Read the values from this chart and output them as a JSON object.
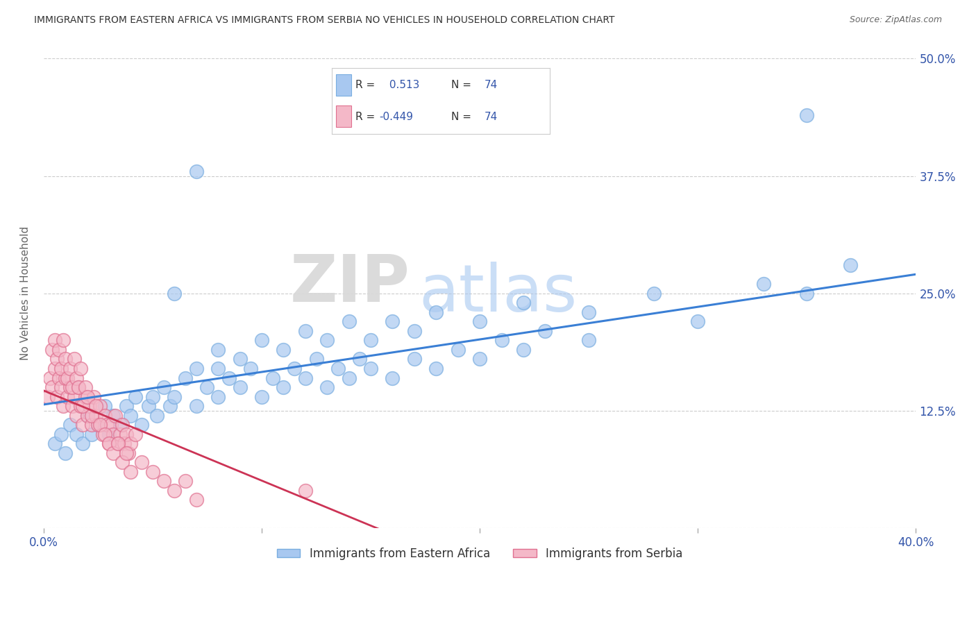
{
  "title": "IMMIGRANTS FROM EASTERN AFRICA VS IMMIGRANTS FROM SERBIA NO VEHICLES IN HOUSEHOLD CORRELATION CHART",
  "source": "Source: ZipAtlas.com",
  "ylabel": "No Vehicles in Household",
  "x_min": 0.0,
  "x_max": 0.4,
  "y_min": 0.0,
  "y_max": 0.5,
  "R_blue": 0.513,
  "R_pink": -0.449,
  "N_blue": 74,
  "N_pink": 74,
  "blue_color": "#a8c8f0",
  "blue_edge_color": "#7aaee0",
  "pink_color": "#f4b8c8",
  "pink_edge_color": "#e07090",
  "blue_line_color": "#3a7fd5",
  "pink_line_color": "#cc3355",
  "legend_label_blue": "Immigrants from Eastern Africa",
  "legend_label_pink": "Immigrants from Serbia",
  "watermark_zip": "ZIP",
  "watermark_atlas": "atlas",
  "background_color": "#ffffff",
  "grid_color": "#cccccc",
  "title_color": "#333333",
  "axis_label_color": "#666666",
  "tick_color": "#3355aa",
  "seed": 42,
  "blue_scatter_x": [
    0.005,
    0.008,
    0.01,
    0.012,
    0.015,
    0.018,
    0.02,
    0.022,
    0.025,
    0.028,
    0.03,
    0.032,
    0.035,
    0.038,
    0.04,
    0.042,
    0.045,
    0.048,
    0.05,
    0.052,
    0.055,
    0.058,
    0.06,
    0.065,
    0.07,
    0.075,
    0.08,
    0.085,
    0.09,
    0.095,
    0.1,
    0.105,
    0.11,
    0.115,
    0.12,
    0.125,
    0.13,
    0.135,
    0.14,
    0.145,
    0.15,
    0.16,
    0.17,
    0.18,
    0.19,
    0.2,
    0.21,
    0.22,
    0.23,
    0.25,
    0.07,
    0.08,
    0.09,
    0.1,
    0.11,
    0.12,
    0.13,
    0.14,
    0.15,
    0.16,
    0.17,
    0.18,
    0.2,
    0.22,
    0.25,
    0.28,
    0.3,
    0.33,
    0.35,
    0.37,
    0.06,
    0.07,
    0.08,
    0.35
  ],
  "blue_scatter_y": [
    0.09,
    0.1,
    0.08,
    0.11,
    0.1,
    0.09,
    0.12,
    0.1,
    0.11,
    0.13,
    0.1,
    0.12,
    0.11,
    0.13,
    0.12,
    0.14,
    0.11,
    0.13,
    0.14,
    0.12,
    0.15,
    0.13,
    0.14,
    0.16,
    0.13,
    0.15,
    0.14,
    0.16,
    0.15,
    0.17,
    0.14,
    0.16,
    0.15,
    0.17,
    0.16,
    0.18,
    0.15,
    0.17,
    0.16,
    0.18,
    0.17,
    0.16,
    0.18,
    0.17,
    0.19,
    0.18,
    0.2,
    0.19,
    0.21,
    0.2,
    0.17,
    0.19,
    0.18,
    0.2,
    0.19,
    0.21,
    0.2,
    0.22,
    0.2,
    0.22,
    0.21,
    0.23,
    0.22,
    0.24,
    0.23,
    0.25,
    0.22,
    0.26,
    0.25,
    0.28,
    0.25,
    0.38,
    0.17,
    0.44
  ],
  "pink_scatter_x": [
    0.002,
    0.003,
    0.004,
    0.005,
    0.006,
    0.007,
    0.008,
    0.009,
    0.01,
    0.011,
    0.012,
    0.013,
    0.014,
    0.015,
    0.016,
    0.017,
    0.018,
    0.019,
    0.02,
    0.021,
    0.022,
    0.023,
    0.024,
    0.025,
    0.026,
    0.027,
    0.028,
    0.029,
    0.03,
    0.031,
    0.032,
    0.033,
    0.034,
    0.035,
    0.036,
    0.037,
    0.038,
    0.039,
    0.04,
    0.042,
    0.004,
    0.005,
    0.006,
    0.007,
    0.008,
    0.009,
    0.01,
    0.011,
    0.012,
    0.013,
    0.014,
    0.015,
    0.016,
    0.017,
    0.018,
    0.019,
    0.02,
    0.022,
    0.024,
    0.026,
    0.028,
    0.03,
    0.032,
    0.034,
    0.036,
    0.038,
    0.04,
    0.045,
    0.05,
    0.055,
    0.06,
    0.065,
    0.07,
    0.12
  ],
  "pink_scatter_y": [
    0.14,
    0.16,
    0.15,
    0.17,
    0.14,
    0.16,
    0.15,
    0.13,
    0.16,
    0.14,
    0.15,
    0.13,
    0.14,
    0.12,
    0.15,
    0.13,
    0.11,
    0.14,
    0.12,
    0.13,
    0.11,
    0.14,
    0.12,
    0.11,
    0.13,
    0.1,
    0.12,
    0.11,
    0.09,
    0.11,
    0.1,
    0.12,
    0.09,
    0.1,
    0.11,
    0.09,
    0.1,
    0.08,
    0.09,
    0.1,
    0.19,
    0.2,
    0.18,
    0.19,
    0.17,
    0.2,
    0.18,
    0.16,
    0.17,
    0.15,
    0.18,
    0.16,
    0.15,
    0.17,
    0.13,
    0.15,
    0.14,
    0.12,
    0.13,
    0.11,
    0.1,
    0.09,
    0.08,
    0.09,
    0.07,
    0.08,
    0.06,
    0.07,
    0.06,
    0.05,
    0.04,
    0.05,
    0.03,
    0.04
  ]
}
